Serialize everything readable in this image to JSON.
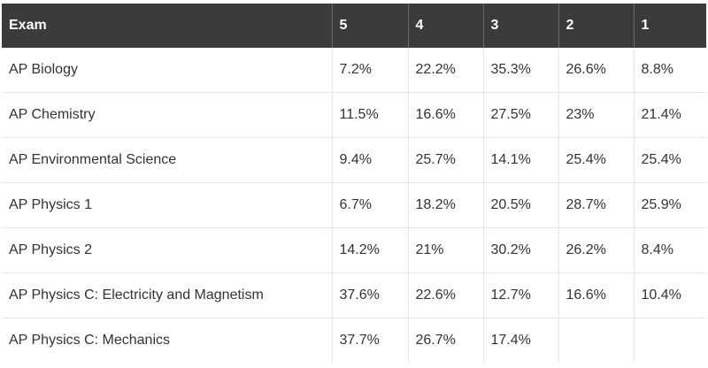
{
  "table": {
    "headers": [
      "Exam",
      "5",
      "4",
      "3",
      "2",
      "1"
    ],
    "rows": [
      [
        "AP Biology",
        "7.2%",
        "22.2%",
        "35.3%",
        "26.6%",
        "8.8%"
      ],
      [
        "AP Chemistry",
        "11.5%",
        "16.6%",
        "27.5%",
        "23%",
        "21.4%"
      ],
      [
        "AP Environmental Science",
        "9.4%",
        "25.7%",
        "14.1%",
        "25.4%",
        "25.4%"
      ],
      [
        "AP Physics 1",
        "6.7%",
        "18.2%",
        "20.5%",
        "28.7%",
        "25.9%"
      ],
      [
        "AP Physics 2",
        "14.2%",
        "21%",
        "30.2%",
        "26.2%",
        "8.4%"
      ],
      [
        "AP Physics C: Electricity and Magnetism",
        "37.6%",
        "22.6%",
        "12.7%",
        "16.6%",
        "10.4%"
      ],
      [
        "AP Physics C: Mechanics",
        "37.7%",
        "26.7%",
        "17.4%",
        "",
        ""
      ]
    ]
  }
}
